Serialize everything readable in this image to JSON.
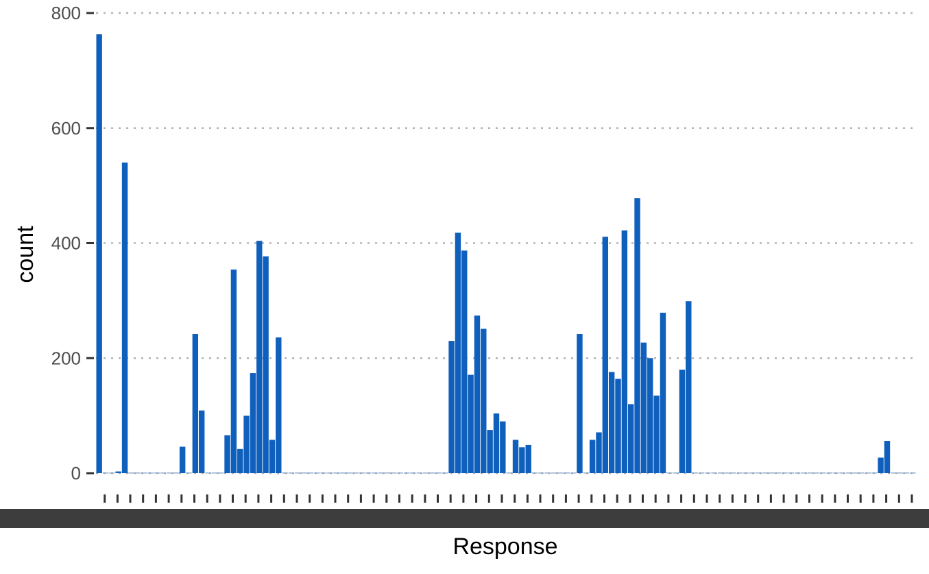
{
  "chart_data": {
    "type": "bar",
    "xlabel": "Response",
    "ylabel": "count",
    "ylim": [
      0,
      800
    ],
    "yticks": [
      0,
      200,
      400,
      600,
      800
    ],
    "grid": "horizontal dotted",
    "bar_color": "#0f5fbd",
    "values": [
      763,
      0,
      0,
      3,
      540,
      0,
      0,
      0,
      0,
      0,
      0,
      0,
      0,
      46,
      0,
      242,
      109,
      0,
      0,
      0,
      66,
      354,
      42,
      100,
      174,
      404,
      377,
      58,
      236,
      0,
      0,
      0,
      0,
      0,
      0,
      0,
      0,
      0,
      0,
      0,
      0,
      0,
      0,
      0,
      0,
      0,
      0,
      0,
      0,
      0,
      0,
      0,
      0,
      0,
      0,
      230,
      418,
      387,
      171,
      274,
      251,
      75,
      104,
      90,
      0,
      58,
      45,
      49,
      0,
      0,
      0,
      0,
      0,
      0,
      0,
      242,
      0,
      58,
      71,
      411,
      176,
      164,
      422,
      120,
      478,
      227,
      200,
      135,
      279,
      0,
      0,
      180,
      299,
      0,
      0,
      0,
      0,
      0,
      0,
      0,
      0,
      0,
      0,
      0,
      0,
      0,
      0,
      0,
      0,
      0,
      0,
      0,
      0,
      0,
      0,
      0,
      0,
      0,
      0,
      0,
      0,
      0,
      27,
      56,
      0,
      0,
      0,
      0
    ]
  }
}
